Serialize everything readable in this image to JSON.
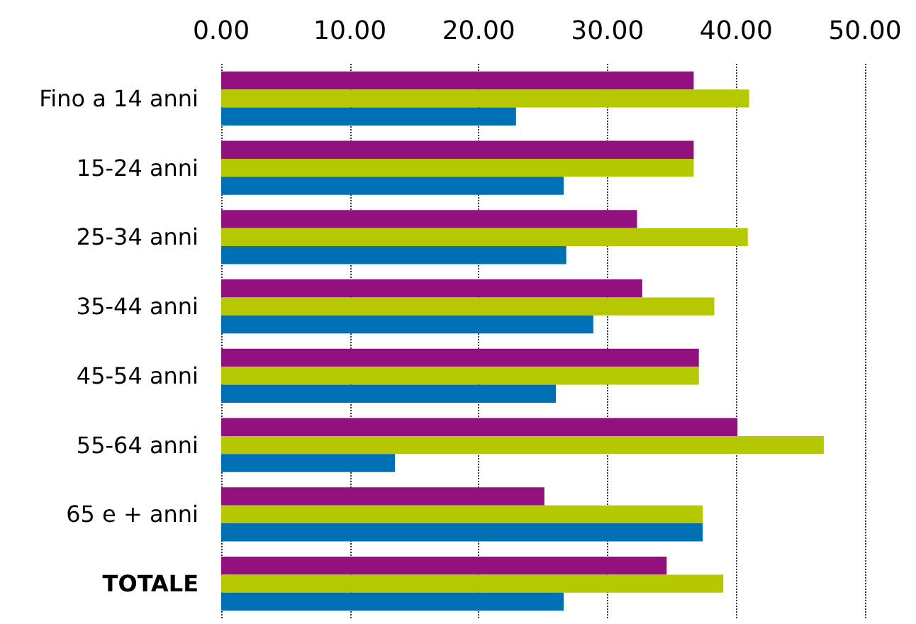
{
  "chart_data": {
    "type": "bar",
    "orientation": "horizontal",
    "categories": [
      "Fino a 14 anni",
      "15-24 anni",
      "25-34 anni",
      "35-44 anni",
      "45-54 anni",
      "55-64 anni",
      "65 e + anni",
      "TOTALE"
    ],
    "series": [
      {
        "color": "#93117e",
        "values": [
          36.7,
          36.7,
          32.3,
          32.7,
          37.1,
          40.1,
          25.1,
          34.6
        ]
      },
      {
        "color": "#b5c800",
        "values": [
          41.0,
          36.7,
          40.9,
          38.3,
          37.1,
          46.8,
          37.4,
          39.0
        ]
      },
      {
        "color": "#0070b5",
        "values": [
          22.9,
          26.6,
          26.8,
          28.9,
          26.0,
          13.5,
          37.4,
          26.6
        ]
      }
    ],
    "xlim": [
      0,
      50
    ],
    "xticks": [
      {
        "value": 0,
        "label": "0.00"
      },
      {
        "value": 10,
        "label": "10.00"
      },
      {
        "value": 20,
        "label": "20.00"
      },
      {
        "value": 30,
        "label": "30.00"
      },
      {
        "value": 40,
        "label": "40.00"
      },
      {
        "value": 50,
        "label": "50.00"
      }
    ],
    "grid": "x",
    "line_style": "dotted"
  }
}
